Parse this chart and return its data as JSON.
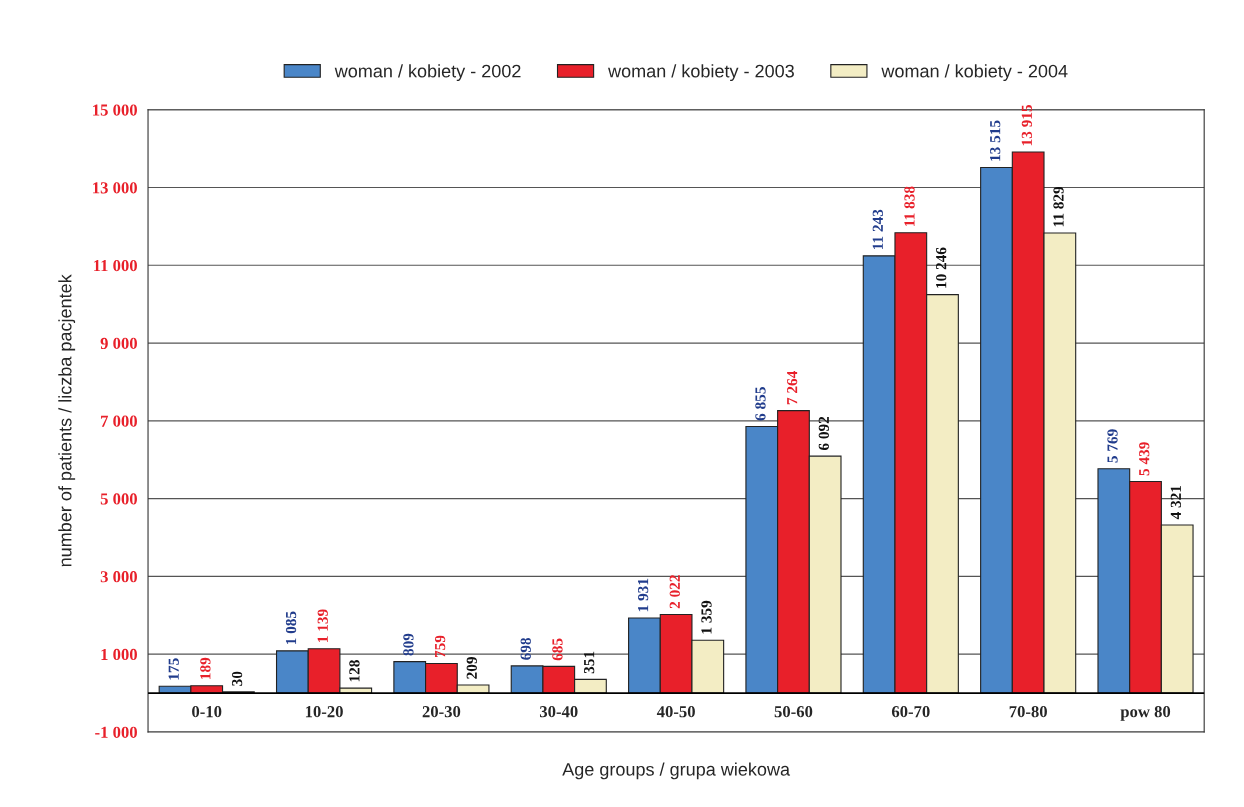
{
  "chart_data": {
    "type": "bar",
    "xlabel": "Age groups / grupa wiekowa",
    "ylabel": "number of patients / liczba pacjentek",
    "categories": [
      "0-10",
      "10-20",
      "20-30",
      "30-40",
      "40-50",
      "50-60",
      "60-70",
      "70-80",
      "pow 80"
    ],
    "series": [
      {
        "name": "woman / kobiety - 2002",
        "color": "#4a86c8",
        "values": [
          175,
          1085,
          809,
          698,
          1931,
          6855,
          11243,
          13515,
          5769
        ],
        "value_labels": [
          "175",
          "1 085",
          "809",
          "698",
          "1 931",
          "6 855",
          "11 243",
          "13 515",
          "5 769"
        ]
      },
      {
        "name": "woman / kobiety - 2003",
        "color": "#e8202a",
        "values": [
          189,
          1139,
          759,
          685,
          2022,
          7264,
          11838,
          13915,
          5439
        ],
        "value_labels": [
          "189",
          "1 139",
          "759",
          "685",
          "2 022",
          "7 264",
          "11 838",
          "13 915",
          "5 439"
        ]
      },
      {
        "name": "woman / kobiety - 2004",
        "color": "#f3edc4",
        "values": [
          30,
          128,
          209,
          351,
          1359,
          6092,
          10246,
          11829,
          4321
        ],
        "value_labels": [
          "30",
          "128",
          "209",
          "351",
          "1 359",
          "6 092",
          "10 246",
          "11 829",
          "4 321"
        ]
      }
    ],
    "ylim": [
      -1000,
      15000
    ],
    "yticks": [
      {
        "value": -1000,
        "label": "-1 000"
      },
      {
        "value": 1000,
        "label": "1 000"
      },
      {
        "value": 3000,
        "label": "3 000"
      },
      {
        "value": 5000,
        "label": "5 000"
      },
      {
        "value": 7000,
        "label": "7 000"
      },
      {
        "value": 9000,
        "label": "9 000"
      },
      {
        "value": 11000,
        "label": "11 000"
      },
      {
        "value": 13000,
        "label": "13 000"
      },
      {
        "value": 15000,
        "label": "15 000"
      }
    ],
    "grid": "y",
    "legend": "top"
  }
}
